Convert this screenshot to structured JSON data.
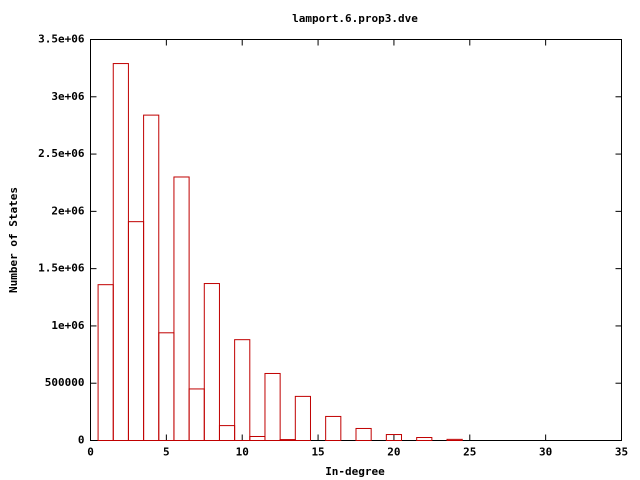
{
  "chart_data": {
    "type": "histogram",
    "title": "lamport.6.prop3.dve",
    "x_label": "In-degree",
    "y_label": "Number of States",
    "bins": [
      0.5,
      1.5,
      2.5,
      3.5,
      4.5,
      5.5,
      6.5,
      7.5,
      8.5,
      9.5,
      10.5,
      11.5,
      12.5,
      13.5,
      14.5,
      15.5,
      16.5,
      17.5,
      18.5,
      19.5,
      20.5,
      21.5,
      22.5,
      23.5,
      24.5
    ],
    "values": [
      1360000,
      3290000,
      1910000,
      2840000,
      940000,
      2300000,
      450000,
      1370000,
      130000,
      880000,
      35000,
      585000,
      8000,
      385000,
      0,
      210000,
      0,
      105000,
      0,
      52000,
      0,
      26000,
      0,
      10000
    ],
    "color": "#c00000",
    "xlim": [
      0,
      35
    ],
    "xticks": [
      0,
      5,
      10,
      15,
      20,
      25,
      30,
      35
    ],
    "ylim": [
      0,
      3500000
    ],
    "yticks": [
      0,
      500000,
      {
        "value": 1000000,
        "label": "1e+06"
      },
      {
        "value": 1500000,
        "label": "1.5e+06"
      },
      {
        "value": 2000000,
        "label": "2e+06"
      },
      {
        "value": 2500000,
        "label": "2.5e+06"
      },
      {
        "value": 3000000,
        "label": "3e+06"
      },
      {
        "value": 3500000,
        "label": "3.5e+06"
      }
    ]
  }
}
